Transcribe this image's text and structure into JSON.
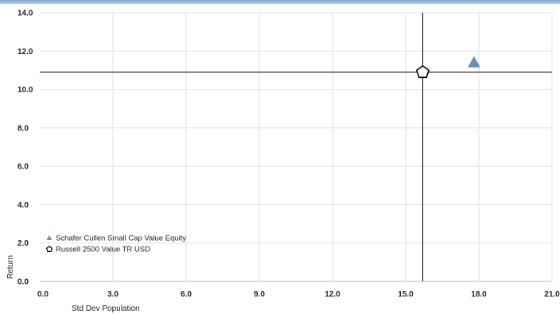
{
  "chart_data": {
    "type": "scatter",
    "xlabel": "Std Dev Population",
    "ylabel": "Return",
    "xlim": [
      0,
      21
    ],
    "ylim": [
      0,
      14
    ],
    "x_ticks": [
      "0.0",
      "3.0",
      "6.0",
      "9.0",
      "12.0",
      "15.0",
      "18.0",
      "21.0"
    ],
    "y_ticks": [
      "0.0",
      "2.0",
      "4.0",
      "6.0",
      "8.0",
      "10.0",
      "12.0",
      "14.0"
    ],
    "grid": true,
    "legend_position": "bottom-left",
    "series": [
      {
        "name": "Schafer Cullen Small Cap Value Equity",
        "marker": "triangle",
        "color": "#6f8fb5",
        "x": 17.8,
        "y": 11.4
      },
      {
        "name": "Russell 2500 Value TR USD",
        "marker": "pentagon",
        "color": "#000000",
        "x": 15.7,
        "y": 10.9
      }
    ],
    "reference_lines": {
      "x": 15.7,
      "y": 10.9
    }
  }
}
